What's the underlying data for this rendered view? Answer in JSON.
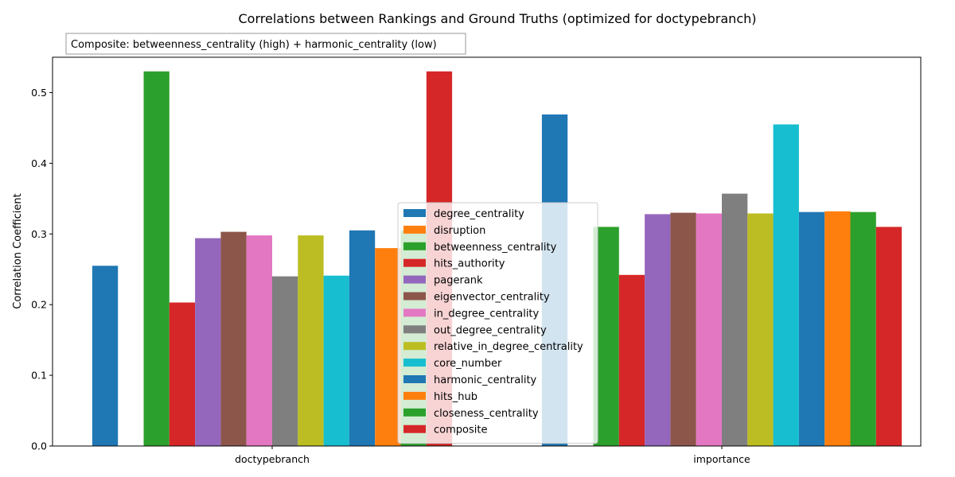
{
  "chart_data": {
    "type": "bar",
    "title": "Correlations between Rankings and Ground Truths (optimized for doctypebranch)",
    "xlabel": "",
    "ylabel": "Correlation Coefficient",
    "ylim": [
      0,
      0.55
    ],
    "yticks": [
      "0.0",
      "0.1",
      "0.2",
      "0.3",
      "0.4",
      "0.5"
    ],
    "categories": [
      "doctypebranch",
      "importance"
    ],
    "annotation": "Composite: betweenness_centrality (high) + harmonic_centrality (low)",
    "legend_position": "lower-center",
    "grid": false,
    "series": [
      {
        "name": "degree_centrality",
        "color": "#1f77b4",
        "values": [
          0.255,
          0.469
        ]
      },
      {
        "name": "disruption",
        "color": "#ff7f0e",
        "values": [
          0.0,
          0.0
        ]
      },
      {
        "name": "betweenness_centrality",
        "color": "#2ca02c",
        "values": [
          0.53,
          0.31
        ]
      },
      {
        "name": "hits_authority",
        "color": "#d62728",
        "values": [
          0.203,
          0.242
        ]
      },
      {
        "name": "pagerank",
        "color": "#9467bd",
        "values": [
          0.294,
          0.328
        ]
      },
      {
        "name": "eigenvector_centrality",
        "color": "#8c564b",
        "values": [
          0.303,
          0.33
        ]
      },
      {
        "name": "in_degree_centrality",
        "color": "#e377c2",
        "values": [
          0.298,
          0.329
        ]
      },
      {
        "name": "out_degree_centrality",
        "color": "#7f7f7f",
        "values": [
          0.24,
          0.357
        ]
      },
      {
        "name": "relative_in_degree_centrality",
        "color": "#bcbd22",
        "values": [
          0.298,
          0.329
        ]
      },
      {
        "name": "core_number",
        "color": "#17becf",
        "values": [
          0.241,
          0.455
        ]
      },
      {
        "name": "harmonic_centrality",
        "color": "#1f77b4",
        "values": [
          0.305,
          0.331
        ]
      },
      {
        "name": "hits_hub",
        "color": "#ff7f0e",
        "values": [
          0.28,
          0.332
        ]
      },
      {
        "name": "closeness_centrality",
        "color": "#2ca02c",
        "values": [
          0.305,
          0.331
        ]
      },
      {
        "name": "composite",
        "color": "#d62728",
        "values": [
          0.53,
          0.31
        ]
      }
    ]
  }
}
